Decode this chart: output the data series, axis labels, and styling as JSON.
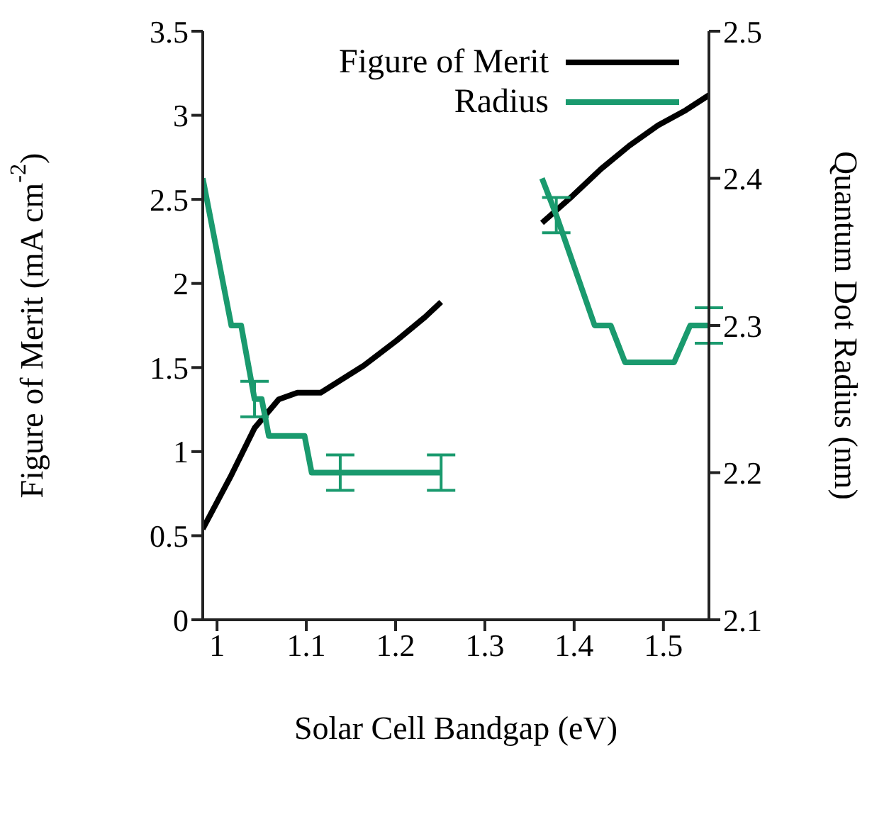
{
  "chart_data": {
    "type": "line",
    "xlabel": "Solar Cell Bandgap (eV)",
    "ylabel": "Figure of Merit (mA cm$^{-2}$)",
    "y2label": "Quantum Dot Radius (nm)",
    "xlim": [
      0.984,
      1.551
    ],
    "xticks": [
      1,
      1.1,
      1.2,
      1.3,
      1.4,
      1.5
    ],
    "ylim": [
      0,
      3.5
    ],
    "yticks": [
      0,
      0.5,
      1,
      1.5,
      2,
      2.5,
      3,
      3.5
    ],
    "y2lim": [
      2.1,
      2.5
    ],
    "y2ticks": [
      2.1,
      2.2,
      2.3,
      2.4,
      2.5
    ],
    "legend": "top right",
    "marker": "none",
    "line_style": "solid",
    "series": [
      {
        "name": "Figure of Merit",
        "color": "#000000",
        "x": [
          0.984,
          1.016,
          1.042,
          1.069,
          1.09,
          1.116,
          1.122,
          1.164,
          1.201,
          1.233,
          1.251,
          1.3,
          1.364,
          1.398,
          1.43,
          1.462,
          1.494,
          1.525,
          1.551
        ],
        "values": [
          0.54,
          0.86,
          1.14,
          1.31,
          1.35,
          1.35,
          1.37,
          1.51,
          1.66,
          1.8,
          1.89,
          null,
          2.36,
          2.52,
          2.68,
          2.82,
          2.94,
          3.03,
          3.12
        ]
      },
      {
        "name": "Radius",
        "color": "#1a9a6e",
        "axis": "y2",
        "x": [
          0.984,
          1.016,
          1.027,
          1.042,
          1.05,
          1.058,
          1.098,
          1.106,
          1.138,
          1.251,
          1.3,
          1.364,
          1.38,
          1.423,
          1.441,
          1.457,
          1.512,
          1.53,
          1.551
        ],
        "values": [
          2.4,
          2.3,
          2.3,
          2.25,
          2.25,
          2.225,
          2.225,
          2.2,
          2.2,
          2.2,
          null,
          2.4,
          2.375,
          2.3,
          2.3,
          2.275,
          2.275,
          2.3,
          2.3
        ],
        "errors": [
          null,
          null,
          null,
          0.012,
          null,
          null,
          null,
          null,
          0.012,
          0.012,
          null,
          null,
          0.012,
          null,
          null,
          null,
          null,
          null,
          0.012
        ]
      }
    ]
  }
}
